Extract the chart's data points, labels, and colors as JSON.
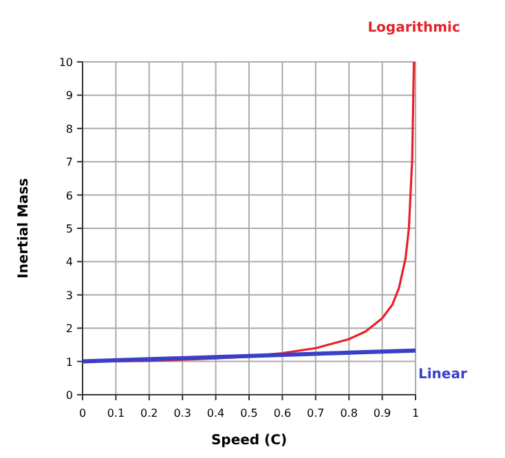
{
  "chart_data": {
    "type": "line",
    "xlabel": "Speed (C)",
    "ylabel": "Inertial Mass",
    "xlim": [
      0,
      1
    ],
    "xticks": [
      0,
      0.1,
      0.2,
      0.3,
      0.4,
      0.5,
      0.6,
      0.7,
      0.8,
      0.9,
      1
    ],
    "ylim": [
      0,
      10
    ],
    "yticks": [
      0,
      1,
      2,
      3,
      4,
      5,
      6,
      7,
      8,
      9,
      10
    ],
    "grid": true,
    "marker": "none",
    "line_style": "solid",
    "series": [
      {
        "name": "Logarithmic",
        "color": "#e8202a",
        "x": [
          0,
          0.2,
          0.3,
          0.4,
          0.5,
          0.6,
          0.7,
          0.8,
          0.85,
          0.9,
          0.93,
          0.95,
          0.97,
          0.98,
          0.99,
          0.995
        ],
        "values": [
          1,
          1.02,
          1.05,
          1.09,
          1.15,
          1.25,
          1.4,
          1.67,
          1.9,
          2.3,
          2.7,
          3.2,
          4.1,
          5,
          7.1,
          10
        ]
      },
      {
        "name": "Linear",
        "color": "#3a3fc8",
        "x": [
          0,
          1
        ],
        "values": [
          1,
          1.33
        ]
      }
    ]
  }
}
